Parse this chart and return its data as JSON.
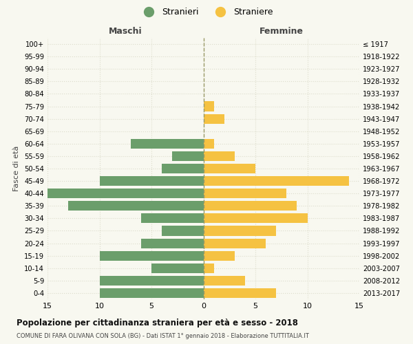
{
  "age_groups": [
    "0-4",
    "5-9",
    "10-14",
    "15-19",
    "20-24",
    "25-29",
    "30-34",
    "35-39",
    "40-44",
    "45-49",
    "50-54",
    "55-59",
    "60-64",
    "65-69",
    "70-74",
    "75-79",
    "80-84",
    "85-89",
    "90-94",
    "95-99",
    "100+"
  ],
  "birth_years": [
    "2013-2017",
    "2008-2012",
    "2003-2007",
    "1998-2002",
    "1993-1997",
    "1988-1992",
    "1983-1987",
    "1978-1982",
    "1973-1977",
    "1968-1972",
    "1963-1967",
    "1958-1962",
    "1953-1957",
    "1948-1952",
    "1943-1947",
    "1938-1942",
    "1933-1937",
    "1928-1932",
    "1923-1927",
    "1918-1922",
    "≤ 1917"
  ],
  "maschi": [
    10,
    10,
    5,
    10,
    6,
    4,
    6,
    13,
    15,
    10,
    4,
    3,
    7,
    0,
    0,
    0,
    0,
    0,
    0,
    0,
    0
  ],
  "femmine": [
    7,
    4,
    1,
    3,
    6,
    7,
    10,
    9,
    8,
    14,
    5,
    3,
    1,
    0,
    2,
    1,
    0,
    0,
    0,
    0,
    0
  ],
  "maschi_color": "#6b9e6b",
  "femmine_color": "#f5c242",
  "title": "Popolazione per cittadinanza straniera per età e sesso - 2018",
  "subtitle": "COMUNE DI FARA OLIVANA CON SOLA (BG) - Dati ISTAT 1° gennaio 2018 - Elaborazione TUTTITALIA.IT",
  "ylabel_left": "Fasce di età",
  "xlabel_maschi": "Maschi",
  "xlabel_femmine": "Femmine",
  "legend_stranieri": "Stranieri",
  "legend_straniere": "Straniere",
  "xlim": 15,
  "background_color": "#f8f8f0",
  "grid_color": "#ddddcc"
}
